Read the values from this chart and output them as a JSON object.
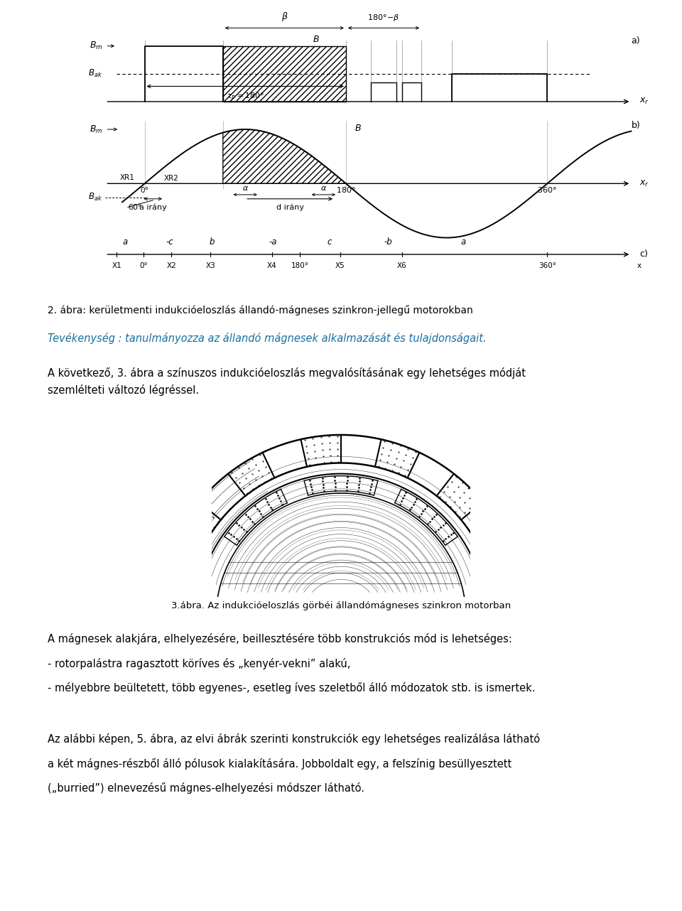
{
  "bg_color": "#ffffff",
  "fig_width": 9.6,
  "fig_height": 12.82,
  "caption_diagram": "2. ábra: kerületmenti indukcióeloszlás állandó-mágneses szinkron-jellegű motorokban",
  "activity_text": "Tevékenység : tanulmányozza az állandó mágnesek alkalmazását és tulajdonságait.",
  "activity_color": "#1a6fa0",
  "paragraph1_line1": "A következő, 3. ábra a színuszos indukcióeloszlás megvalósításának egy lehetséges módját",
  "paragraph1_line2": "szemlélteti változó légréssel.",
  "caption_motor": "3.ábra. Az indukcióeloszlás görbéi állandómágneses szinkron motorban",
  "paragraph2_line1": "A mágnesek alakjára, elhelyezésére, beillesztésére több konstrukciós mód is lehetséges:",
  "paragraph2_line2": "- rotorpalástra ragasztott köríves és „kenyér-vekni” alakú,",
  "paragraph2_line3": "- mélyebbre beültetett, több egyenes-, esetleg íves szeletből álló módozatok stb. is ismertek.",
  "paragraph3_line1": "Az alábbi képen, 5. ábra, az elvi ábrák szerinti konstrukciók egy lehetséges realizálása látható",
  "paragraph3_line2": "a két mágnes-részből álló pólusok kialakítására. Jobboldalt egy, a felszínig besüllyesztett",
  "paragraph3_line3": "(„burried”) elnevezésű mágnes-elhelyezési módszer látható."
}
